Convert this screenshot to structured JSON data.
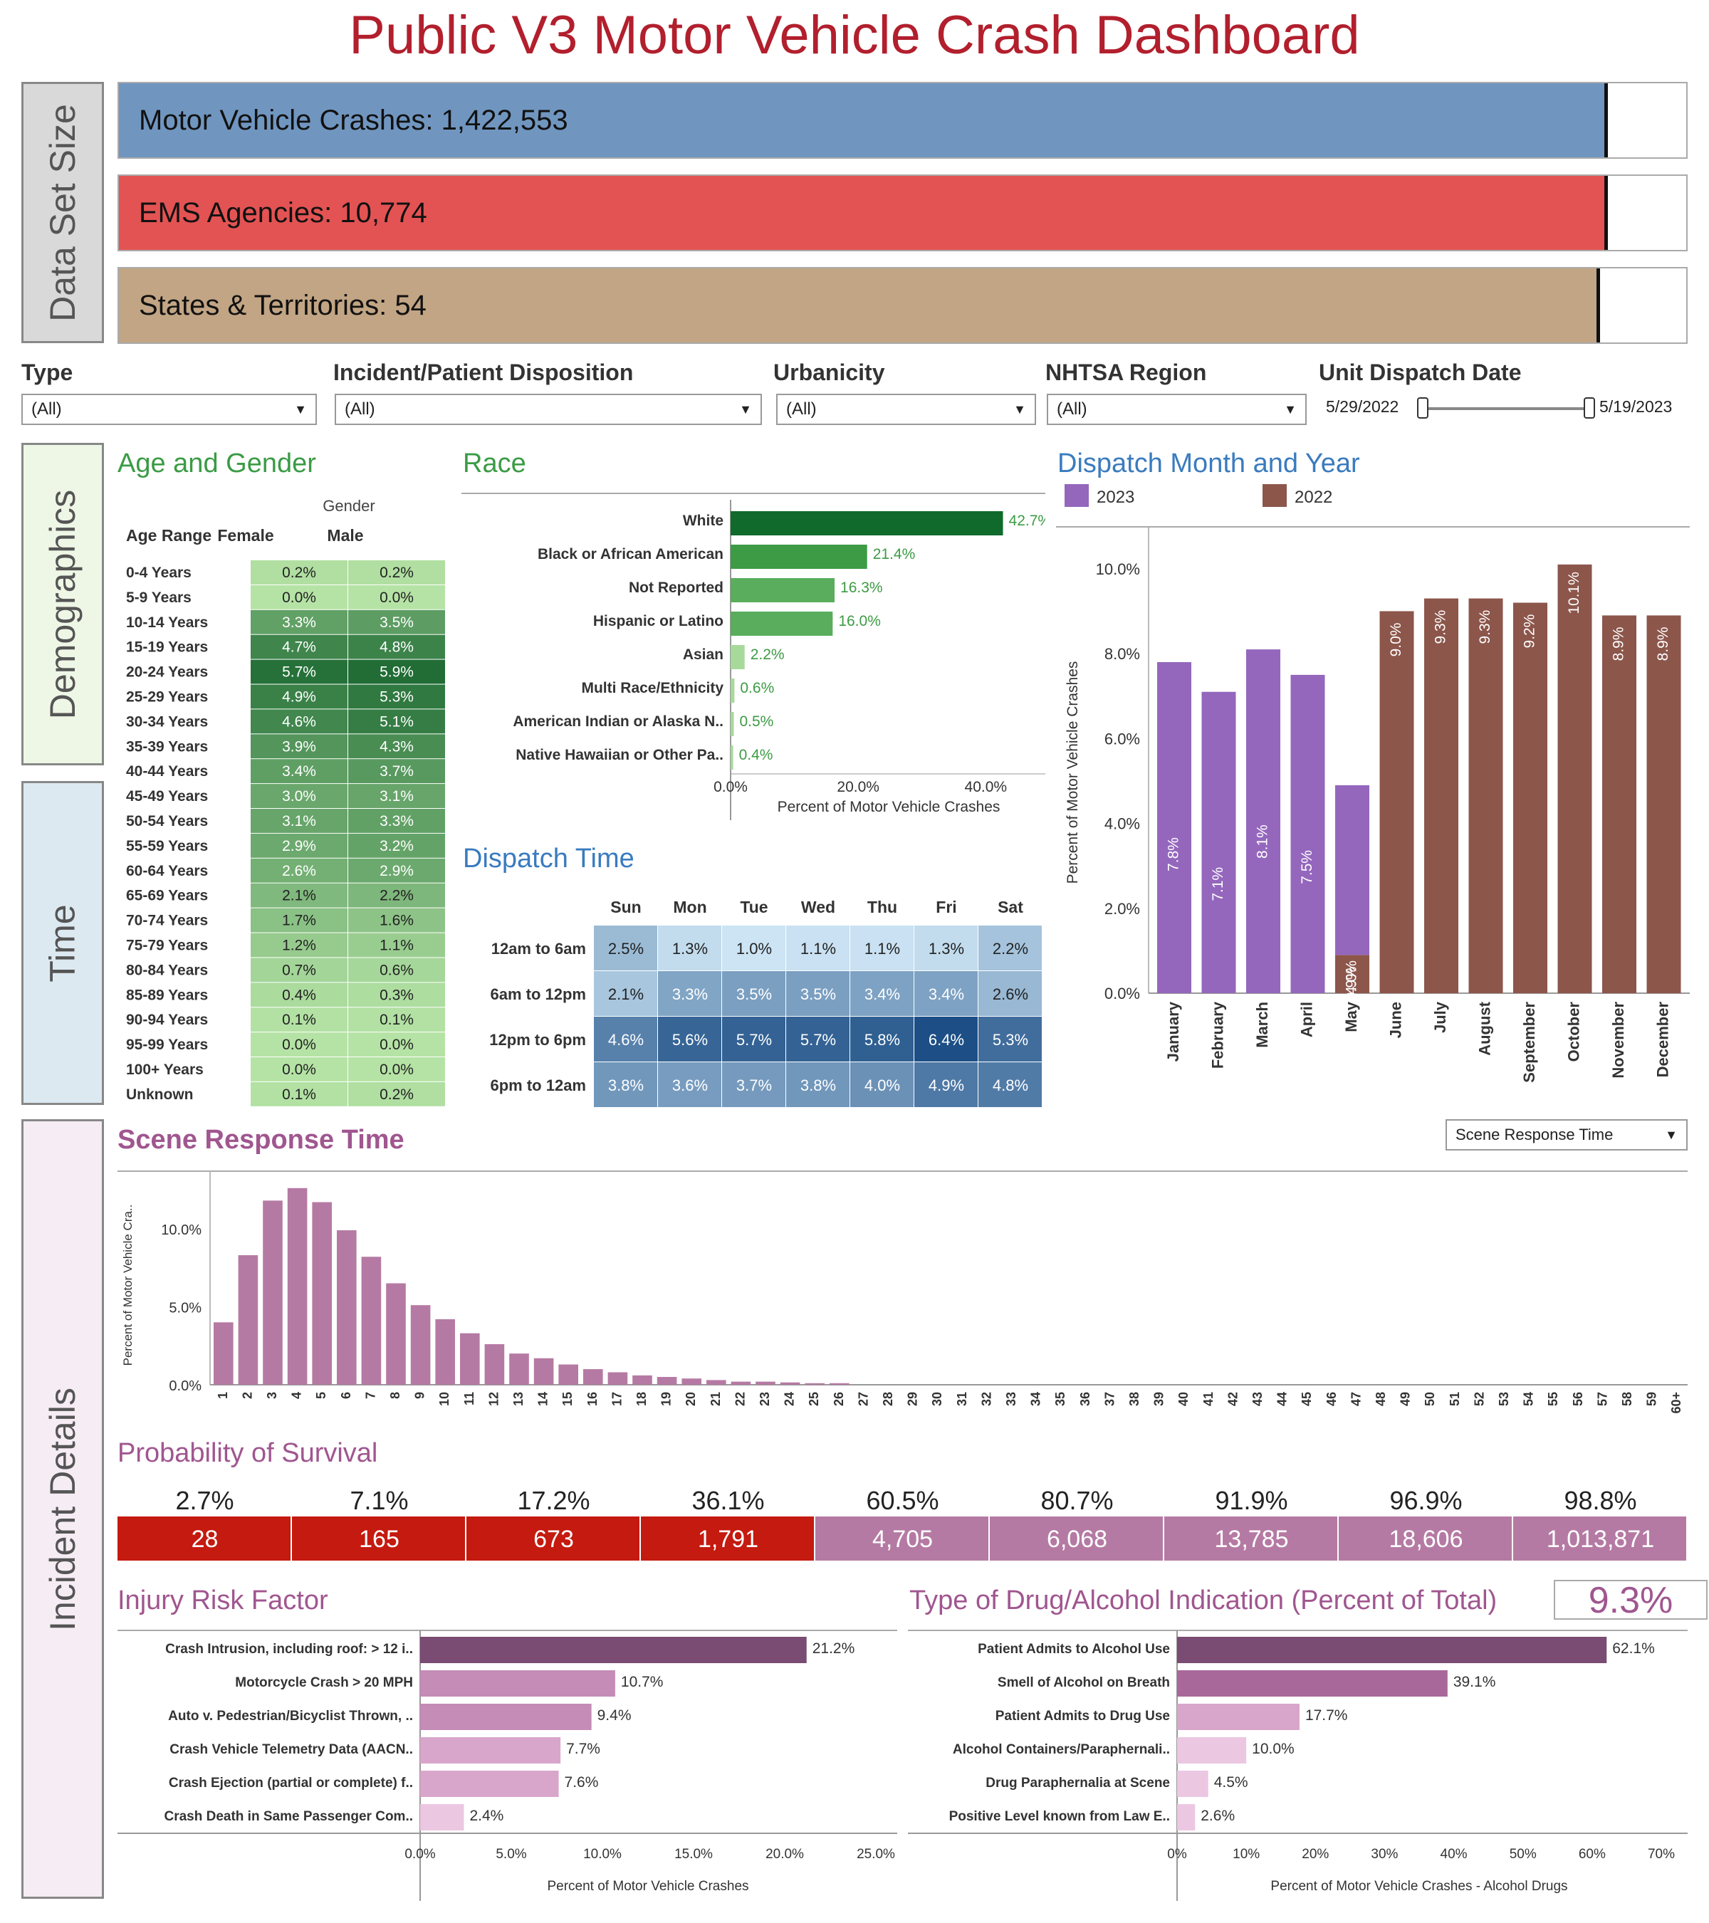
{
  "title": "Public V3 Motor Vehicle Crash Dashboard",
  "side_labels": {
    "data_set": "Data Set Size",
    "demographics": "Demographics",
    "time": "Time",
    "incident": "Incident Details"
  },
  "dataset": [
    {
      "label": "Motor Vehicle Crashes: 1,422,553",
      "fill": 0.95,
      "color": "#7096c0"
    },
    {
      "label": "EMS Agencies: 10,774",
      "fill": 0.95,
      "color": "#e35353"
    },
    {
      "label": "States & Territories: 54",
      "fill": 0.945,
      "color": "#c2a584"
    }
  ],
  "filters": [
    {
      "label": "Type",
      "value": "(All)"
    },
    {
      "label": "Incident/Patient Disposition",
      "value": "(All)"
    },
    {
      "label": "Urbanicity",
      "value": "(All)"
    },
    {
      "label": "NHTSA Region",
      "value": "(All)"
    },
    {
      "label": "Unit Dispatch Date",
      "start": "5/29/2022",
      "end": "5/19/2023"
    }
  ],
  "chart_data": [
    {
      "id": "age_gender",
      "type": "table",
      "title": "Age and Gender",
      "column_group": "Gender",
      "row_header": "Age Range",
      "columns": [
        "Female",
        "Male"
      ],
      "rows": [
        "0-4 Years",
        "5-9 Years",
        "10-14 Years",
        "15-19 Years",
        "20-24 Years",
        "25-29 Years",
        "30-34 Years",
        "35-39 Years",
        "40-44 Years",
        "45-49 Years",
        "50-54 Years",
        "55-59 Years",
        "60-64 Years",
        "65-69 Years",
        "70-74 Years",
        "75-79 Years",
        "80-84 Years",
        "85-89 Years",
        "90-94 Years",
        "95-99 Years",
        "100+ Years",
        "Unknown"
      ],
      "values": [
        [
          0.2,
          0.2
        ],
        [
          0.0,
          0.0
        ],
        [
          3.3,
          3.5
        ],
        [
          4.7,
          4.8
        ],
        [
          5.7,
          5.9
        ],
        [
          4.9,
          5.3
        ],
        [
          4.6,
          5.1
        ],
        [
          3.9,
          4.3
        ],
        [
          3.4,
          3.7
        ],
        [
          3.0,
          3.1
        ],
        [
          3.1,
          3.3
        ],
        [
          2.9,
          3.2
        ],
        [
          2.6,
          2.9
        ],
        [
          2.1,
          2.2
        ],
        [
          1.7,
          1.6
        ],
        [
          1.2,
          1.1
        ],
        [
          0.7,
          0.6
        ],
        [
          0.4,
          0.3
        ],
        [
          0.1,
          0.1
        ],
        [
          0.0,
          0.0
        ],
        [
          0.0,
          0.0
        ],
        [
          0.1,
          0.2
        ]
      ],
      "labels": [
        [
          "0.2%",
          "0.2%"
        ],
        [
          "0.0%",
          "0.0%"
        ],
        [
          "3.3%",
          "3.5%"
        ],
        [
          "4.7%",
          "4.8%"
        ],
        [
          "5.7%",
          "5.9%"
        ],
        [
          "4.9%",
          "5.3%"
        ],
        [
          "4.6%",
          "5.1%"
        ],
        [
          "3.9%",
          "4.3%"
        ],
        [
          "3.4%",
          "3.7%"
        ],
        [
          "3.0%",
          "3.1%"
        ],
        [
          "3.1%",
          "3.3%"
        ],
        [
          "2.9%",
          "3.2%"
        ],
        [
          "2.6%",
          "2.9%"
        ],
        [
          "2.1%",
          "2.2%"
        ],
        [
          "1.7%",
          "1.6%"
        ],
        [
          "1.2%",
          "1.1%"
        ],
        [
          "0.7%",
          "0.6%"
        ],
        [
          "0.4%",
          "0.3%"
        ],
        [
          "0.1%",
          "0.1%"
        ],
        [
          "0.0%",
          "0.0%"
        ],
        [
          "0.0%",
          "0.0%"
        ],
        [
          "0.1%",
          "0.2%"
        ]
      ]
    },
    {
      "id": "race",
      "type": "bar",
      "title": "Race",
      "categories": [
        "White",
        "Black or African American",
        "Not Reported",
        "Hispanic or Latino",
        "Asian",
        "Multi Race/Ethnicity",
        "American Indian or Alaska N..",
        "Native Hawaiian or Other Pa.."
      ],
      "values": [
        42.7,
        21.4,
        16.3,
        16.0,
        2.2,
        0.6,
        0.5,
        0.4
      ],
      "labels": [
        "42.7%",
        "21.4%",
        "16.3%",
        "16.0%",
        "2.2%",
        "0.6%",
        "0.5%",
        "0.4%"
      ],
      "xticks": [
        "0.0%",
        "20.0%",
        "40.0%"
      ],
      "xlabel": "Percent of Motor Vehicle Crashes",
      "xlim": [
        0,
        48
      ]
    },
    {
      "id": "dispatch_time",
      "type": "heatmap",
      "title": "Dispatch Time",
      "columns": [
        "Sun",
        "Mon",
        "Tue",
        "Wed",
        "Thu",
        "Fri",
        "Sat"
      ],
      "rows": [
        "12am to 6am",
        "6am to 12pm",
        "12pm to 6pm",
        "6pm to 12am"
      ],
      "values": [
        [
          2.5,
          1.3,
          1.0,
          1.1,
          1.1,
          1.3,
          2.2
        ],
        [
          2.1,
          3.3,
          3.5,
          3.5,
          3.4,
          3.4,
          2.6
        ],
        [
          4.6,
          5.6,
          5.7,
          5.7,
          5.8,
          6.4,
          5.3
        ],
        [
          3.8,
          3.6,
          3.7,
          3.8,
          4.0,
          4.9,
          4.8
        ]
      ],
      "labels": [
        [
          "2.5%",
          "1.3%",
          "1.0%",
          "1.1%",
          "1.1%",
          "1.3%",
          "2.2%"
        ],
        [
          "2.1%",
          "3.3%",
          "3.5%",
          "3.5%",
          "3.4%",
          "3.4%",
          "2.6%"
        ],
        [
          "4.6%",
          "5.6%",
          "5.7%",
          "5.7%",
          "5.8%",
          "6.4%",
          "5.3%"
        ],
        [
          "3.8%",
          "3.6%",
          "3.7%",
          "3.8%",
          "4.0%",
          "4.9%",
          "4.8%"
        ]
      ]
    },
    {
      "id": "dispatch_month",
      "type": "bar",
      "title": "Dispatch Month and Year",
      "legend": [
        {
          "name": "2023",
          "color": "#9467bd"
        },
        {
          "name": "2022",
          "color": "#8c564b"
        }
      ],
      "categories": [
        "January",
        "February",
        "March",
        "April",
        "May",
        "June",
        "July",
        "August",
        "September",
        "October",
        "November",
        "December"
      ],
      "series": [
        {
          "name": "2023",
          "values": [
            7.8,
            7.1,
            8.1,
            7.5,
            4.0,
            0,
            0,
            0,
            0,
            0,
            0,
            0
          ],
          "labels": [
            "7.8%",
            "7.1%",
            "8.1%",
            "7.5%",
            "4.0%",
            "",
            "",
            "",
            "",
            "",
            "",
            ""
          ]
        },
        {
          "name": "2022",
          "values": [
            0,
            0,
            0,
            0,
            0.9,
            9.0,
            9.3,
            9.3,
            9.2,
            10.1,
            8.9,
            8.9
          ],
          "labels": [
            "",
            "",
            "",
            "",
            "0.9%",
            "9.0%",
            "9.3%",
            "9.3%",
            "9.2%",
            "10.1%",
            "8.9%",
            "8.9%"
          ]
        }
      ],
      "ylabel": "Percent of Motor Vehicle Crashes",
      "yticks": [
        "0.0%",
        "2.0%",
        "4.0%",
        "6.0%",
        "8.0%",
        "10.0%"
      ],
      "ylim": [
        0,
        10.4
      ]
    },
    {
      "id": "scene_response",
      "type": "bar",
      "title": "Scene Response Time",
      "dropdown": "Scene Response Time",
      "categories": [
        "1",
        "2",
        "3",
        "4",
        "5",
        "6",
        "7",
        "8",
        "9",
        "10",
        "11",
        "12",
        "13",
        "14",
        "15",
        "16",
        "17",
        "18",
        "19",
        "20",
        "21",
        "22",
        "23",
        "24",
        "25",
        "26",
        "27",
        "28",
        "29",
        "30",
        "31",
        "32",
        "33",
        "34",
        "35",
        "36",
        "37",
        "38",
        "39",
        "40",
        "41",
        "42",
        "43",
        "44",
        "45",
        "46",
        "47",
        "48",
        "49",
        "50",
        "51",
        "52",
        "53",
        "54",
        "55",
        "56",
        "57",
        "58",
        "59",
        "60+"
      ],
      "values": [
        4.0,
        8.3,
        11.8,
        12.6,
        11.7,
        9.9,
        8.2,
        6.5,
        5.1,
        4.2,
        3.3,
        2.6,
        2.0,
        1.7,
        1.3,
        1.0,
        0.8,
        0.6,
        0.5,
        0.4,
        0.3,
        0.2,
        0.2,
        0.15,
        0.1,
        0.1,
        0,
        0,
        0,
        0,
        0,
        0,
        0,
        0,
        0,
        0,
        0,
        0,
        0,
        0,
        0,
        0,
        0,
        0,
        0,
        0,
        0,
        0,
        0,
        0,
        0,
        0,
        0,
        0,
        0,
        0,
        0,
        0,
        0,
        0
      ],
      "ylabel": "Percent of Motor Vehicle Cra..",
      "yticks": [
        "0.0%",
        "5.0%",
        "10.0%"
      ],
      "ylim": [
        0,
        13.0
      ]
    },
    {
      "id": "survival",
      "type": "table",
      "title": "Probability of Survival",
      "percents": [
        "2.7%",
        "7.1%",
        "17.2%",
        "36.1%",
        "60.5%",
        "80.7%",
        "91.9%",
        "96.9%",
        "98.8%"
      ],
      "counts": [
        "28",
        "165",
        "673",
        "1,791",
        "4,705",
        "6,068",
        "13,785",
        "18,606",
        "1,013,871"
      ],
      "colors": [
        "#c41a0f",
        "#c41a0f",
        "#c41a0f",
        "#c41a0f",
        "#b57aa3",
        "#b57aa3",
        "#b57aa3",
        "#b57aa3",
        "#b57aa3"
      ]
    },
    {
      "id": "injury_risk",
      "type": "bar",
      "title": "Injury Risk Factor",
      "categories": [
        "Crash Intrusion, including roof: > 12 i..",
        "Motorcycle Crash > 20 MPH",
        "Auto v. Pedestrian/Bicyclist Thrown, ..",
        "Crash Vehicle Telemetry Data (AACN..",
        "Crash Ejection (partial or complete) f..",
        "Crash Death in Same Passenger Com.."
      ],
      "values": [
        21.2,
        10.7,
        9.4,
        7.7,
        7.6,
        2.4
      ],
      "labels": [
        "21.2%",
        "10.7%",
        "9.4%",
        "7.7%",
        "7.6%",
        "2.4%"
      ],
      "colors": [
        "#7a4b73",
        "#c48cb6",
        "#c48cb6",
        "#d9a6cb",
        "#d9a6cb",
        "#ecc7e2"
      ],
      "xticks": [
        "0.0%",
        "5.0%",
        "10.0%",
        "15.0%",
        "20.0%",
        "25.0%"
      ],
      "xlabel": "Percent of Motor Vehicle Crashes",
      "xlim": [
        0,
        25
      ]
    },
    {
      "id": "drug_alcohol",
      "type": "bar",
      "title": "Type of Drug/Alcohol Indication  (Percent of Total)",
      "kpi": "9.3%",
      "categories": [
        "Patient Admits to Alcohol Use",
        "Smell of Alcohol on Breath",
        "Patient Admits to Drug Use",
        "Alcohol Containers/Paraphernali..",
        "Drug Paraphernalia at Scene",
        "Positive Level known from Law E.."
      ],
      "values": [
        62.1,
        39.1,
        17.7,
        10.0,
        4.5,
        2.6
      ],
      "labels": [
        "62.1%",
        "39.1%",
        "17.7%",
        "10.0%",
        "4.5%",
        "2.6%"
      ],
      "colors": [
        "#7a4b73",
        "#a8689a",
        "#d9a6cb",
        "#ecc7e2",
        "#ecc7e2",
        "#ecc7e2"
      ],
      "xticks": [
        "0%",
        "10%",
        "20%",
        "30%",
        "40%",
        "50%",
        "60%",
        "70%"
      ],
      "xlabel": "Percent of Motor Vehicle Crashes - Alcohol Drugs",
      "xlim": [
        0,
        70
      ]
    }
  ]
}
